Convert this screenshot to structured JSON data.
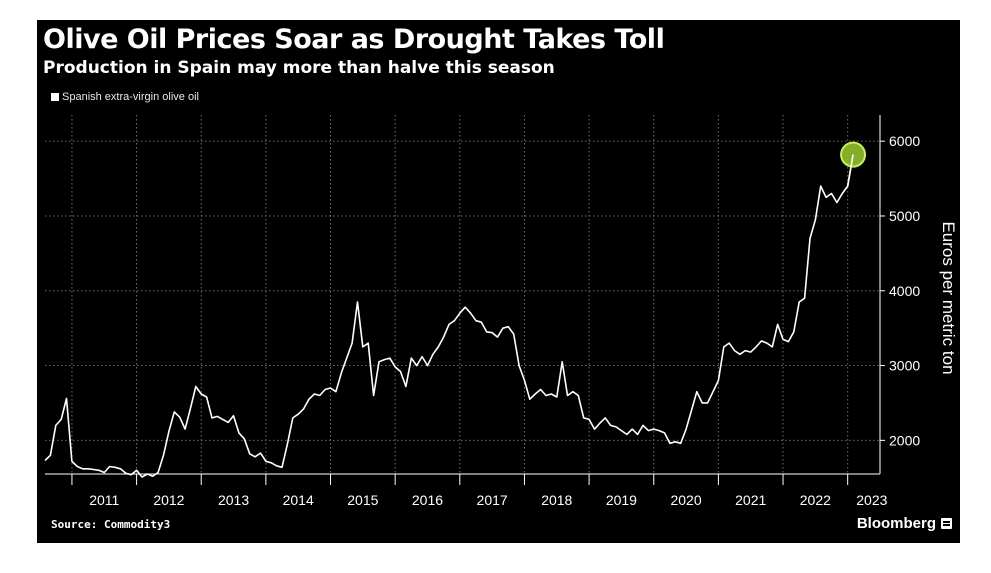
{
  "header": {
    "title": "Olive Oil Prices Soar as Drought Takes Toll",
    "subtitle": "Production in Spain may more than halve this season"
  },
  "legend": {
    "label": "Spanish extra-virgin olive oil"
  },
  "footer": {
    "source": "Source: Commodity3",
    "brand": "Bloomberg"
  },
  "colors": {
    "background": "#000000",
    "line": "#ffffff",
    "highlight": "#9acd32",
    "grid": "#6e6e6e"
  },
  "chart_data": {
    "type": "line",
    "title": "Olive Oil Prices Soar as Drought Takes Toll",
    "subtitle": "Production in Spain may more than halve this season",
    "ylabel": "Euros per metric ton",
    "xlabel": "",
    "ylim": [
      1550,
      6350
    ],
    "xlim": [
      "2010-08",
      "2023-07"
    ],
    "y_ticks": [
      2000,
      3000,
      4000,
      5000,
      6000
    ],
    "x_tick_labels": [
      "2011",
      "2012",
      "2013",
      "2014",
      "2015",
      "2016",
      "2017",
      "2018",
      "2019",
      "2020",
      "2021",
      "2022",
      "2023"
    ],
    "grid": true,
    "legend_position": "top-left",
    "y_axis_side": "right",
    "series": [
      {
        "name": "Spanish extra-virgin olive oil",
        "points": [
          [
            "2010-08",
            1730
          ],
          [
            "2010-09",
            1800
          ],
          [
            "2010-10",
            2200
          ],
          [
            "2010-11",
            2280
          ],
          [
            "2010-12",
            2560
          ],
          [
            "2011-01",
            1720
          ],
          [
            "2011-02",
            1650
          ],
          [
            "2011-03",
            1620
          ],
          [
            "2011-04",
            1620
          ],
          [
            "2011-05",
            1610
          ],
          [
            "2011-06",
            1600
          ],
          [
            "2011-07",
            1570
          ],
          [
            "2011-08",
            1650
          ],
          [
            "2011-09",
            1640
          ],
          [
            "2011-10",
            1620
          ],
          [
            "2011-11",
            1560
          ],
          [
            "2011-12",
            1540
          ],
          [
            "2012-01",
            1600
          ],
          [
            "2012-02",
            1510
          ],
          [
            "2012-03",
            1550
          ],
          [
            "2012-04",
            1520
          ],
          [
            "2012-05",
            1570
          ],
          [
            "2012-06",
            1800
          ],
          [
            "2012-07",
            2120
          ],
          [
            "2012-08",
            2380
          ],
          [
            "2012-09",
            2310
          ],
          [
            "2012-10",
            2150
          ],
          [
            "2012-11",
            2430
          ],
          [
            "2012-12",
            2720
          ],
          [
            "2013-01",
            2620
          ],
          [
            "2013-02",
            2580
          ],
          [
            "2013-03",
            2300
          ],
          [
            "2013-04",
            2320
          ],
          [
            "2013-05",
            2280
          ],
          [
            "2013-06",
            2240
          ],
          [
            "2013-07",
            2330
          ],
          [
            "2013-08",
            2100
          ],
          [
            "2013-09",
            2020
          ],
          [
            "2013-10",
            1820
          ],
          [
            "2013-11",
            1780
          ],
          [
            "2013-12",
            1830
          ],
          [
            "2014-01",
            1720
          ],
          [
            "2014-02",
            1700
          ],
          [
            "2014-03",
            1660
          ],
          [
            "2014-04",
            1640
          ],
          [
            "2014-05",
            1950
          ],
          [
            "2014-06",
            2300
          ],
          [
            "2014-07",
            2350
          ],
          [
            "2014-08",
            2420
          ],
          [
            "2014-09",
            2550
          ],
          [
            "2014-10",
            2620
          ],
          [
            "2014-11",
            2600
          ],
          [
            "2014-12",
            2680
          ],
          [
            "2015-01",
            2700
          ],
          [
            "2015-02",
            2650
          ],
          [
            "2015-03",
            2900
          ],
          [
            "2015-04",
            3100
          ],
          [
            "2015-05",
            3300
          ],
          [
            "2015-06",
            3850
          ],
          [
            "2015-07",
            3250
          ],
          [
            "2015-08",
            3300
          ],
          [
            "2015-09",
            2600
          ],
          [
            "2015-10",
            3050
          ],
          [
            "2015-11",
            3080
          ],
          [
            "2015-12",
            3100
          ],
          [
            "2016-01",
            2980
          ],
          [
            "2016-02",
            2920
          ],
          [
            "2016-03",
            2720
          ],
          [
            "2016-04",
            3100
          ],
          [
            "2016-05",
            3000
          ],
          [
            "2016-06",
            3120
          ],
          [
            "2016-07",
            3000
          ],
          [
            "2016-08",
            3150
          ],
          [
            "2016-09",
            3250
          ],
          [
            "2016-10",
            3380
          ],
          [
            "2016-11",
            3550
          ],
          [
            "2016-12",
            3600
          ],
          [
            "2017-01",
            3700
          ],
          [
            "2017-02",
            3780
          ],
          [
            "2017-03",
            3700
          ],
          [
            "2017-04",
            3600
          ],
          [
            "2017-05",
            3580
          ],
          [
            "2017-06",
            3450
          ],
          [
            "2017-07",
            3440
          ],
          [
            "2017-08",
            3380
          ],
          [
            "2017-09",
            3500
          ],
          [
            "2017-10",
            3520
          ],
          [
            "2017-11",
            3420
          ],
          [
            "2017-12",
            3000
          ],
          [
            "2018-01",
            2800
          ],
          [
            "2018-02",
            2550
          ],
          [
            "2018-03",
            2620
          ],
          [
            "2018-04",
            2680
          ],
          [
            "2018-05",
            2600
          ],
          [
            "2018-06",
            2620
          ],
          [
            "2018-07",
            2580
          ],
          [
            "2018-08",
            3050
          ],
          [
            "2018-09",
            2600
          ],
          [
            "2018-10",
            2650
          ],
          [
            "2018-11",
            2600
          ],
          [
            "2018-12",
            2300
          ],
          [
            "2019-01",
            2280
          ],
          [
            "2019-02",
            2150
          ],
          [
            "2019-03",
            2230
          ],
          [
            "2019-04",
            2300
          ],
          [
            "2019-05",
            2200
          ],
          [
            "2019-06",
            2180
          ],
          [
            "2019-07",
            2130
          ],
          [
            "2019-08",
            2080
          ],
          [
            "2019-09",
            2150
          ],
          [
            "2019-10",
            2080
          ],
          [
            "2019-11",
            2200
          ],
          [
            "2019-12",
            2130
          ],
          [
            "2020-01",
            2150
          ],
          [
            "2020-02",
            2130
          ],
          [
            "2020-03",
            2100
          ],
          [
            "2020-04",
            1960
          ],
          [
            "2020-05",
            1980
          ],
          [
            "2020-06",
            1960
          ],
          [
            "2020-07",
            2150
          ],
          [
            "2020-08",
            2400
          ],
          [
            "2020-09",
            2650
          ],
          [
            "2020-10",
            2500
          ],
          [
            "2020-11",
            2500
          ],
          [
            "2020-12",
            2650
          ],
          [
            "2021-01",
            2800
          ],
          [
            "2021-02",
            3250
          ],
          [
            "2021-03",
            3300
          ],
          [
            "2021-04",
            3200
          ],
          [
            "2021-05",
            3150
          ],
          [
            "2021-06",
            3200
          ],
          [
            "2021-07",
            3180
          ],
          [
            "2021-08",
            3250
          ],
          [
            "2021-09",
            3330
          ],
          [
            "2021-10",
            3300
          ],
          [
            "2021-11",
            3250
          ],
          [
            "2021-12",
            3550
          ],
          [
            "2022-01",
            3350
          ],
          [
            "2022-02",
            3320
          ],
          [
            "2022-03",
            3450
          ],
          [
            "2022-04",
            3850
          ],
          [
            "2022-05",
            3900
          ],
          [
            "2022-06",
            4700
          ],
          [
            "2022-07",
            4950
          ],
          [
            "2022-08",
            5400
          ],
          [
            "2022-09",
            5250
          ],
          [
            "2022-10",
            5300
          ],
          [
            "2022-11",
            5180
          ],
          [
            "2022-12",
            5300
          ],
          [
            "2023-01",
            5400
          ],
          [
            "2023-02",
            5820
          ]
        ]
      }
    ],
    "annotations": [
      {
        "type": "highlight-circle",
        "x": "2023-02",
        "y": 5820
      }
    ]
  }
}
